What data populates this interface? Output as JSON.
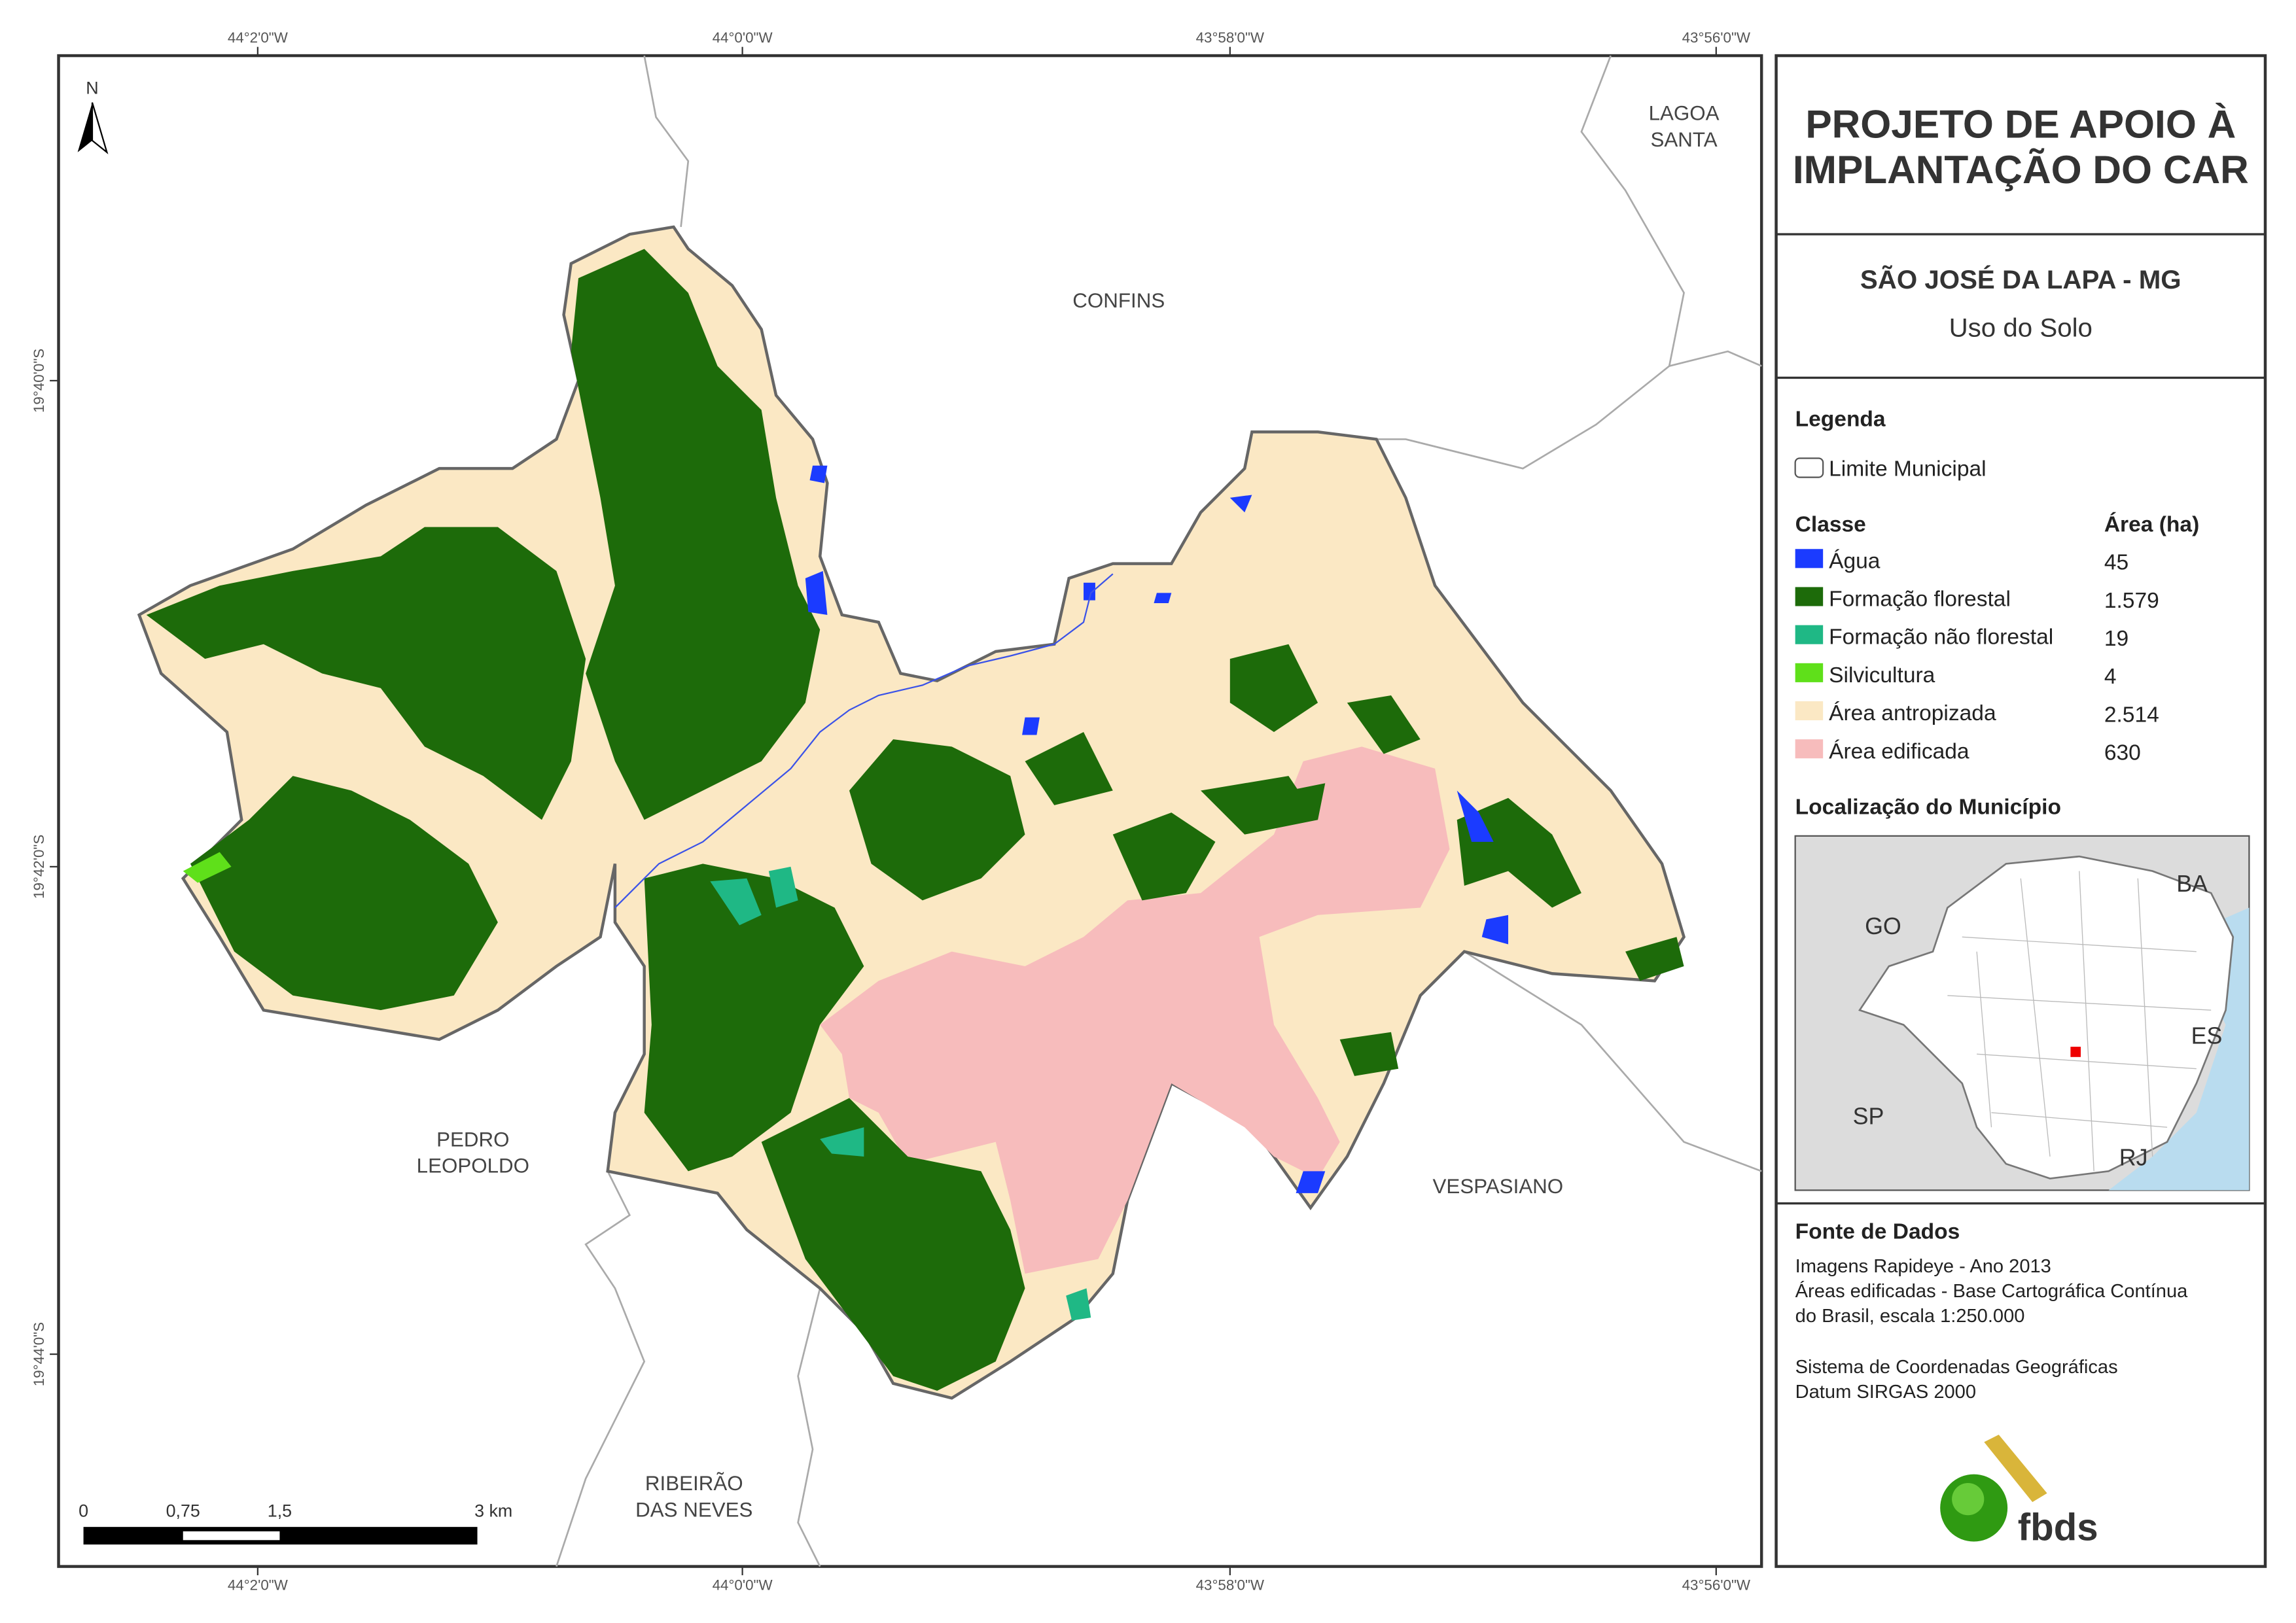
{
  "map": {
    "top_coordinates": [
      "44°2'0\"W",
      "44°0'0\"W",
      "43°58'0\"W",
      "43°56'0\"W"
    ],
    "bottom_coordinates": [
      "44°2'0\"W",
      "44°0'0\"W",
      "43°58'0\"W",
      "43°56'0\"W"
    ],
    "left_coordinates": [
      "19°40'0\"S",
      "19°42'0\"S",
      "19°44'0\"S"
    ],
    "north": "N",
    "places": {
      "lagoa_santa": [
        "LAGOA",
        "SANTA"
      ],
      "confins": [
        "CONFINS"
      ],
      "pedro_leopoldo": [
        "PEDRO",
        "LEOPOLDO"
      ],
      "vespasiano": [
        "VESPASIANO"
      ],
      "ribeirao_das_neves": [
        "RIBEIRÃO",
        "DAS NEVES"
      ]
    },
    "scale_bar": [
      "0",
      "0,75",
      "1,5",
      "3 km"
    ]
  },
  "panel": {
    "title": [
      "PROJETO DE APOIO À",
      "IMPLANTAÇÃO DO CAR"
    ],
    "municipality": "SÃO JOSÉ DA LAPA - MG",
    "subtitle": "Uso do Solo",
    "legend": {
      "title": "Legenda",
      "boundary": "Limite Municipal",
      "class_header": "Classe",
      "area_header": "Área (ha)",
      "classes": [
        {
          "name": "Água",
          "area": "45",
          "color": "#1b3bff"
        },
        {
          "name": "Formação florestal",
          "area": "1.579",
          "color": "#1d6b0a"
        },
        {
          "name": "Formação não florestal",
          "area": "19",
          "color": "#1fb885"
        },
        {
          "name": "Silvicultura",
          "area": "4",
          "color": "#5fe01a"
        },
        {
          "name": "Área antropizada",
          "area": "2.514",
          "color": "#fbe8c4"
        },
        {
          "name": "Área edificada",
          "area": "630",
          "color": "#f7bcbc"
        }
      ]
    },
    "location": {
      "title": "Localização do Município",
      "states": [
        "GO",
        "BA",
        "ES",
        "SP",
        "RJ"
      ]
    },
    "sources": {
      "title": "Fonte de Dados",
      "lines": [
        "Imagens Rapideye - Ano 2013",
        "Áreas edificadas - Base Cartográfica Contínua",
        "do Brasil, escala 1:250.000",
        "Sistema de Coordenadas Geográficas",
        "Datum SIRGAS 2000"
      ]
    },
    "logo": "fbds"
  }
}
